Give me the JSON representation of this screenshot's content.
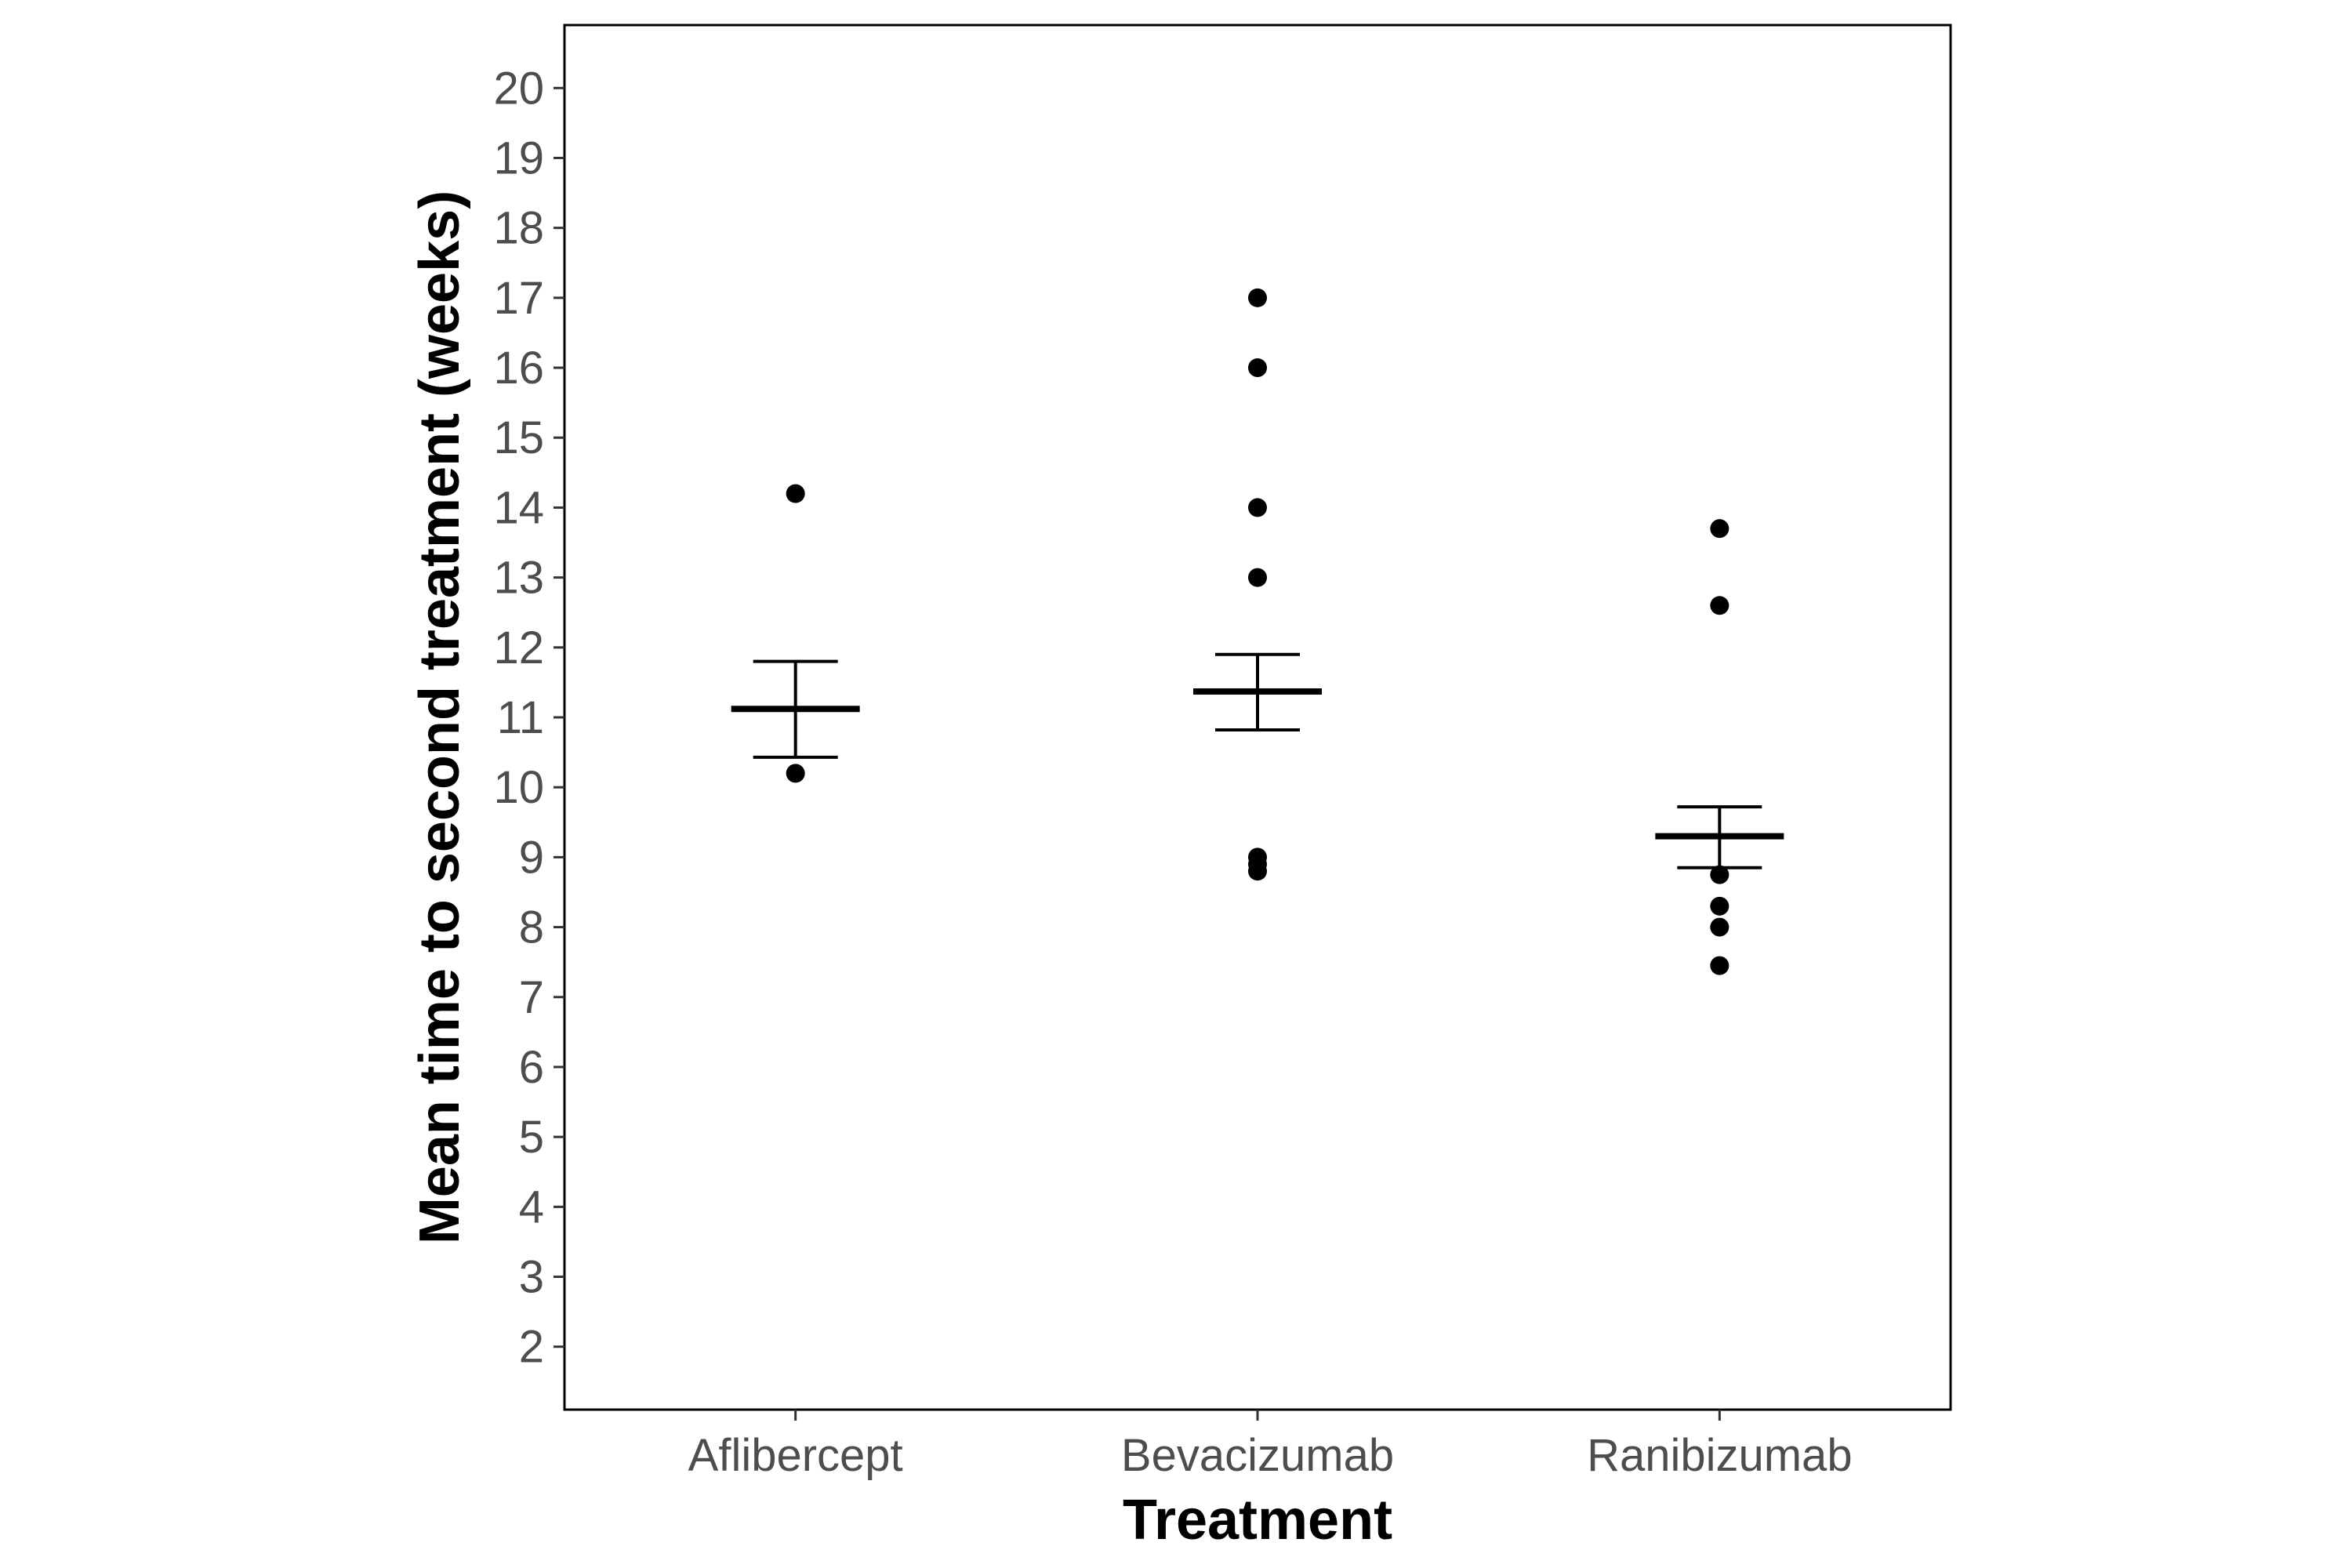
{
  "chart_data": {
    "type": "scatter",
    "title": "",
    "xlabel": "Treatment",
    "ylabel": "Mean time to second treatment (weeks)",
    "categories": [
      "Aflibercept",
      "Bevacizumab",
      "Ranibizumab"
    ],
    "ylim": [
      1.1,
      20.9
    ],
    "yticks": [
      2,
      3,
      4,
      5,
      6,
      7,
      8,
      9,
      10,
      11,
      12,
      13,
      14,
      15,
      16,
      17,
      18,
      19,
      20
    ],
    "grid": false,
    "legend": "none",
    "points": [
      {
        "category": "Aflibercept",
        "values": [
          14.2,
          10.2
        ]
      },
      {
        "category": "Bevacizumab",
        "values": [
          17.0,
          16.0,
          14.0,
          13.0,
          9.0,
          8.9,
          8.8
        ]
      },
      {
        "category": "Ranibizumab",
        "values": [
          13.7,
          12.6,
          8.75,
          8.3,
          8.0,
          7.45
        ]
      }
    ],
    "summary": [
      {
        "category": "Aflibercept",
        "mean": 11.12,
        "lower": 10.43,
        "upper": 11.8
      },
      {
        "category": "Bevacizumab",
        "mean": 11.37,
        "lower": 10.82,
        "upper": 11.9
      },
      {
        "category": "Ranibizumab",
        "mean": 9.3,
        "lower": 8.85,
        "upper": 9.72
      }
    ],
    "colors": {
      "points": "#000000",
      "axis": "#000000",
      "tick_labels": "#4d4d4d"
    }
  }
}
